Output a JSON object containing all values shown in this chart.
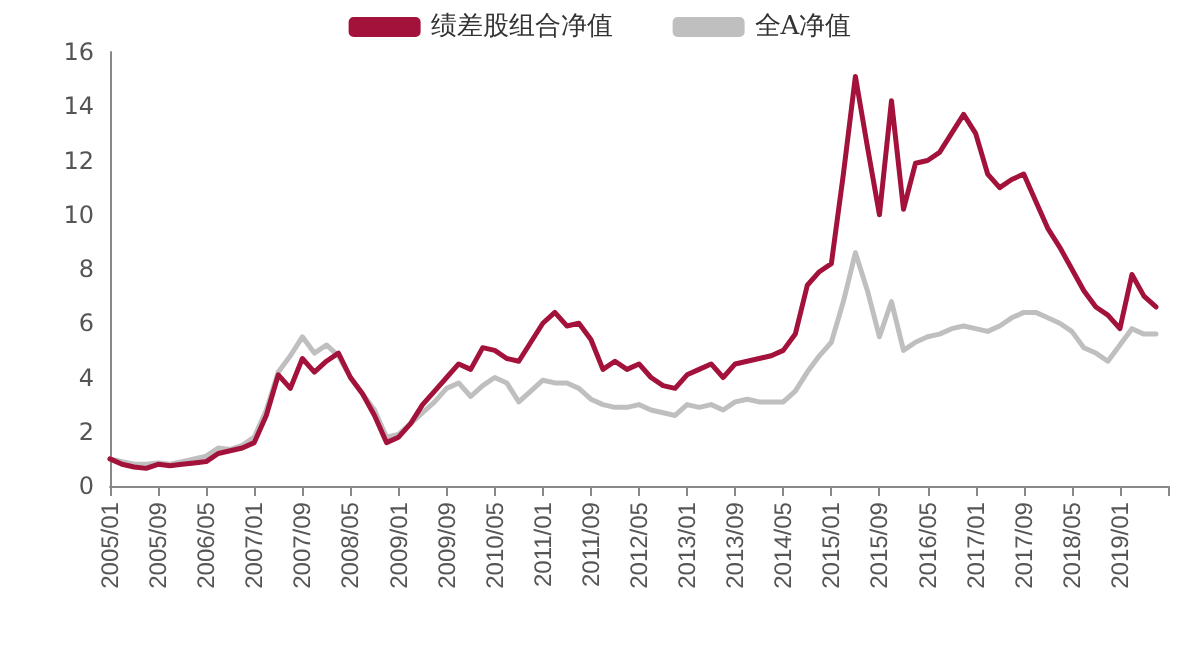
{
  "chart_data": {
    "type": "line",
    "categories": [
      "2005/01",
      null,
      null,
      null,
      "2005/09",
      null,
      null,
      null,
      "2006/05",
      null,
      null,
      null,
      "2007/01",
      null,
      null,
      null,
      "2007/09",
      null,
      null,
      null,
      "2008/05",
      null,
      null,
      null,
      "2009/01",
      null,
      null,
      null,
      "2009/09",
      null,
      null,
      null,
      "2010/05",
      null,
      null,
      null,
      "2011/01",
      null,
      null,
      null,
      "2011/09",
      null,
      null,
      null,
      "2012/05",
      null,
      null,
      null,
      "2013/01",
      null,
      null,
      null,
      "2013/09",
      null,
      null,
      null,
      "2014/05",
      null,
      null,
      null,
      "2015/01",
      null,
      null,
      null,
      "2015/09",
      null,
      null,
      null,
      "2016/05",
      null,
      null,
      null,
      "2017/01",
      null,
      null,
      null,
      "2017/09",
      null,
      null,
      null,
      "2018/05",
      null,
      null,
      null,
      "2019/01",
      null,
      null,
      null,
      null
    ],
    "series": [
      {
        "name": "绩差股组合净值",
        "color": "#a3123a",
        "values": [
          1.0,
          0.8,
          0.7,
          0.65,
          0.8,
          0.75,
          0.8,
          0.85,
          0.9,
          1.2,
          1.3,
          1.4,
          1.6,
          2.6,
          4.1,
          3.6,
          4.7,
          4.2,
          4.6,
          4.9,
          4.0,
          3.4,
          2.6,
          1.6,
          1.8,
          2.3,
          3.0,
          3.5,
          4.0,
          4.5,
          4.3,
          5.1,
          5.0,
          4.7,
          4.6,
          5.3,
          6.0,
          6.4,
          5.9,
          6.0,
          5.4,
          4.3,
          4.6,
          4.3,
          4.5,
          4.0,
          3.7,
          3.6,
          4.1,
          4.3,
          4.5,
          4.0,
          4.5,
          4.6,
          4.7,
          4.8,
          5.0,
          5.6,
          7.4,
          7.9,
          8.2,
          11.5,
          15.1,
          12.5,
          10.0,
          14.2,
          10.2,
          11.9,
          12.0,
          12.3,
          13.0,
          13.7,
          13.0,
          11.5,
          11.0,
          11.3,
          11.5,
          10.5,
          9.5,
          8.8,
          8.0,
          7.2,
          6.6,
          6.3,
          5.8,
          7.8,
          7.0,
          6.6,
          null
        ]
      },
      {
        "name": "全A净值",
        "color": "#bfbfbf",
        "values": [
          1.0,
          0.9,
          0.8,
          0.8,
          0.85,
          0.8,
          0.9,
          1.0,
          1.1,
          1.4,
          1.35,
          1.5,
          1.8,
          2.8,
          4.2,
          4.8,
          5.5,
          4.9,
          5.2,
          4.8,
          4.0,
          3.4,
          2.8,
          1.8,
          1.9,
          2.3,
          2.7,
          3.1,
          3.6,
          3.8,
          3.3,
          3.7,
          4.0,
          3.8,
          3.1,
          3.5,
          3.9,
          3.8,
          3.8,
          3.6,
          3.2,
          3.0,
          2.9,
          2.9,
          3.0,
          2.8,
          2.7,
          2.6,
          3.0,
          2.9,
          3.0,
          2.8,
          3.1,
          3.2,
          3.1,
          3.1,
          3.1,
          3.5,
          4.2,
          4.8,
          5.3,
          6.8,
          8.6,
          7.2,
          5.5,
          6.8,
          5.0,
          5.3,
          5.5,
          5.6,
          5.8,
          5.9,
          5.8,
          5.7,
          5.9,
          6.2,
          6.4,
          6.4,
          6.2,
          6.0,
          5.7,
          5.1,
          4.9,
          4.6,
          5.2,
          5.8,
          5.6,
          5.6,
          null
        ]
      }
    ],
    "ylim": [
      0,
      16
    ],
    "yticks": [
      0,
      2,
      4,
      6,
      8,
      10,
      12,
      14,
      16
    ],
    "grid": false,
    "legend": "top",
    "marker": "none",
    "line_style": "solid"
  }
}
